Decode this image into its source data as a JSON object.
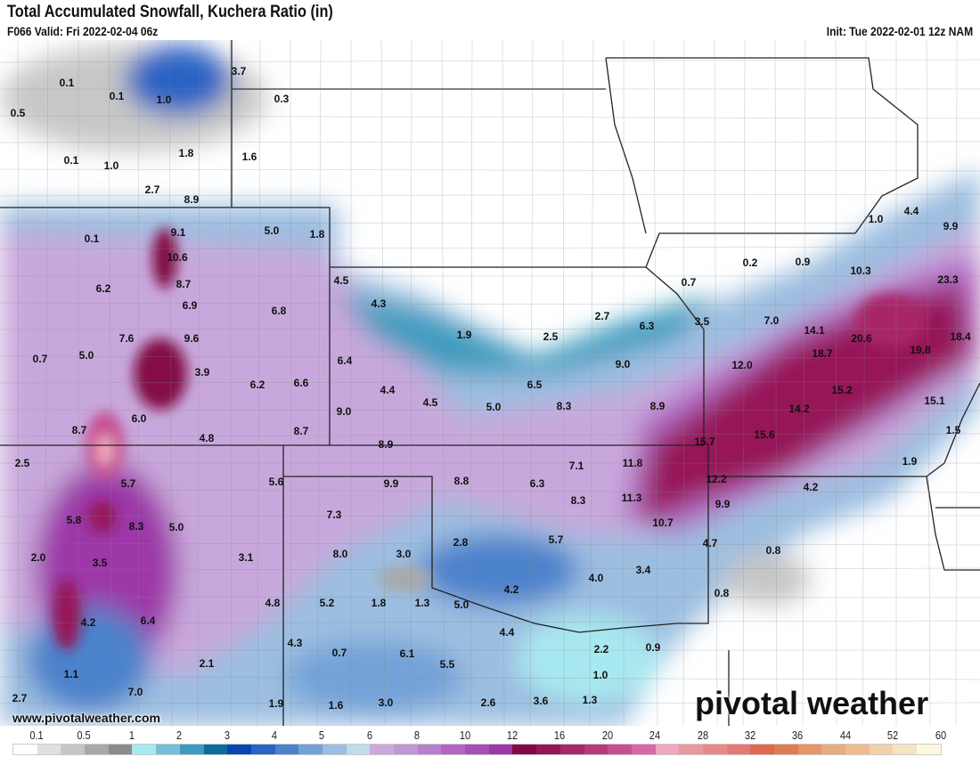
{
  "header": {
    "title": "Total Accumulated Snowfall, Kuchera Ratio (in)",
    "valid": "F066 Valid: Fri 2022-02-04 06z",
    "init": "Init: Tue 2022-02-01 12z NAM"
  },
  "watermark": "www.pivotalweather.com",
  "logo": "pivotal weather",
  "colorbar": {
    "ticks": [
      "0.1",
      "0.5",
      "1",
      "2",
      "3",
      "4",
      "5",
      "6",
      "8",
      "10",
      "12",
      "16",
      "20",
      "24",
      "28",
      "32",
      "36",
      "44",
      "52",
      "60"
    ],
    "colors": [
      "#ffffff",
      "#e0e0e0",
      "#c6c6c6",
      "#a8a8a8",
      "#8c8c8c",
      "#a8e8f0",
      "#74c0d8",
      "#3c9cc0",
      "#0c6c9c",
      "#0846b4",
      "#2a64c4",
      "#4c82cc",
      "#72a2d8",
      "#9cbee0",
      "#c0dce8",
      "#caaadc",
      "#c096d4",
      "#b880cc",
      "#b066c2",
      "#a650b6",
      "#9c38a8",
      "#840846",
      "#961658",
      "#a82868",
      "#b83a7c",
      "#c84e92",
      "#d868a8",
      "#f0a8be",
      "#ea98a0",
      "#e88888",
      "#e47872",
      "#e06850",
      "#e07c52",
      "#e69468",
      "#e8aa80",
      "#f0bc92",
      "#f2d0aa",
      "#f4e4c2",
      "#fcf8dc"
    ]
  },
  "map_labels": [
    "0.1",
    "0.1",
    "1.0",
    "3.7",
    "0.3",
    "0.5",
    "1.8",
    "1.6",
    "0.1",
    "1.0",
    "2.7",
    "8.9",
    "5.0",
    "1.8",
    "0.1",
    "9.1",
    "10.6",
    "8.7",
    "6.2",
    "6.9",
    "4.5",
    "4.3",
    "6.8",
    "7.6",
    "9.6",
    "0.7",
    "5.0",
    "3.9",
    "6.4",
    "1.9",
    "2.5",
    "2.7",
    "6.3",
    "3.5",
    "7.0",
    "14.1",
    "18.7",
    "20.6",
    "19.8",
    "18.4",
    "12.0",
    "9.0",
    "6.5",
    "6.2",
    "6.6",
    "4.4",
    "4.5",
    "5.0",
    "8.3",
    "8.9",
    "15.2",
    "14.2",
    "15.1",
    "9.0",
    "6.0",
    "8.7",
    "4.8",
    "8.7",
    "8.9",
    "15.7",
    "15.6",
    "1.5",
    "7.1",
    "11.8",
    "2.5",
    "1.9",
    "12.2",
    "4.2",
    "5.7",
    "5.6",
    "9.9",
    "8.8",
    "6.3",
    "8.3",
    "11.3",
    "9.9",
    "7.3",
    "5.8",
    "8.3",
    "5.0",
    "10.7",
    "5.7",
    "2.8",
    "4.7",
    "0.8",
    "2.0",
    "3.5",
    "3.1",
    "8.0",
    "3.0",
    "3.4",
    "4.0",
    "4.2",
    "0.8",
    "4.8",
    "5.2",
    "1.8",
    "1.3",
    "5.0",
    "4.2",
    "6.4",
    "4.4",
    "4.3",
    "0.7",
    "6.1",
    "2.2",
    "0.9",
    "2.1",
    "5.5",
    "1.1",
    "1.0",
    "7.0",
    "2.7",
    "1.9",
    "1.6",
    "3.0",
    "2.6",
    "3.6",
    "1.3",
    "1.0",
    "4.4",
    "9.9",
    "10.3",
    "23.3",
    "0.2",
    "0.9",
    "0.7"
  ]
}
